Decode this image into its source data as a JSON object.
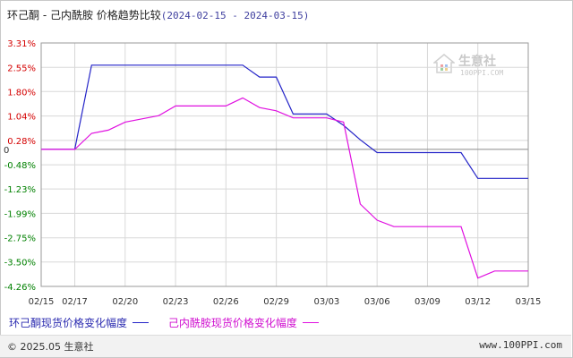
{
  "header": {
    "title": "环己酮 - 己内酰胺 价格趋势比较",
    "date_range": "(2024-02-15 - 2024-03-15)"
  },
  "watermark": {
    "name": "生意社",
    "url": "100PPI.COM"
  },
  "footer": {
    "copyright": "© 2025.05 生意社",
    "site": "www.100PPI.com"
  },
  "colors": {
    "series1": "#2424c8",
    "series2": "#e010e0",
    "axis_text_pos": "#d40000",
    "axis_text_neg": "#008000",
    "grid": "#d8d8d8"
  },
  "chart_data": {
    "type": "line",
    "y_ticks": [
      "3.31%",
      "2.55%",
      "1.80%",
      "1.04%",
      "0.28%",
      "-0.48%",
      "-1.23%",
      "-1.99%",
      "-2.75%",
      "-3.50%",
      "-4.26%"
    ],
    "y_tick_values": [
      3.31,
      2.55,
      1.8,
      1.04,
      0.28,
      -0.48,
      -1.23,
      -1.99,
      -2.75,
      -3.5,
      -4.26
    ],
    "zero_label": "0",
    "ylim": [
      -4.26,
      3.31
    ],
    "x_ticks": [
      "02/15",
      "02/17",
      "02/20",
      "02/23",
      "02/26",
      "02/29",
      "03/03",
      "03/06",
      "03/09",
      "03/12",
      "03/15"
    ],
    "x_tick_days": [
      0,
      2,
      5,
      8,
      11,
      14,
      17,
      20,
      23,
      26,
      29
    ],
    "xlim": [
      0,
      29
    ],
    "grid": true,
    "series": [
      {
        "name": "环己酮现货价格变化幅度",
        "points": [
          [
            0,
            0
          ],
          [
            1,
            0
          ],
          [
            2,
            0
          ],
          [
            3,
            2.62
          ],
          [
            4,
            2.62
          ],
          [
            5,
            2.62
          ],
          [
            6,
            2.62
          ],
          [
            7,
            2.62
          ],
          [
            8,
            2.62
          ],
          [
            9,
            2.62
          ],
          [
            10,
            2.62
          ],
          [
            11,
            2.62
          ],
          [
            12,
            2.62
          ],
          [
            13,
            2.25
          ],
          [
            14,
            2.25
          ],
          [
            15,
            1.1
          ],
          [
            16,
            1.1
          ],
          [
            17,
            1.1
          ],
          [
            18,
            0.75
          ],
          [
            19,
            0.3
          ],
          [
            20,
            -0.1
          ],
          [
            21,
            -0.1
          ],
          [
            22,
            -0.1
          ],
          [
            23,
            -0.1
          ],
          [
            24,
            -0.1
          ],
          [
            25,
            -0.1
          ],
          [
            26,
            -0.9
          ],
          [
            27,
            -0.9
          ],
          [
            28,
            -0.9
          ],
          [
            29,
            -0.9
          ]
        ]
      },
      {
        "name": "己内酰胺现货价格变化幅度",
        "points": [
          [
            0,
            0
          ],
          [
            1,
            0
          ],
          [
            2,
            0
          ],
          [
            3,
            0.5
          ],
          [
            4,
            0.6
          ],
          [
            5,
            0.85
          ],
          [
            6,
            0.95
          ],
          [
            7,
            1.05
          ],
          [
            8,
            1.35
          ],
          [
            9,
            1.35
          ],
          [
            10,
            1.35
          ],
          [
            11,
            1.35
          ],
          [
            12,
            1.6
          ],
          [
            13,
            1.3
          ],
          [
            14,
            1.2
          ],
          [
            15,
            0.98
          ],
          [
            16,
            0.98
          ],
          [
            17,
            0.98
          ],
          [
            18,
            0.85
          ],
          [
            19,
            -1.7
          ],
          [
            20,
            -2.2
          ],
          [
            21,
            -2.4
          ],
          [
            22,
            -2.4
          ],
          [
            23,
            -2.4
          ],
          [
            24,
            -2.4
          ],
          [
            25,
            -2.4
          ],
          [
            26,
            -4.0
          ],
          [
            27,
            -3.78
          ],
          [
            28,
            -3.78
          ],
          [
            29,
            -3.78
          ]
        ]
      }
    ]
  }
}
